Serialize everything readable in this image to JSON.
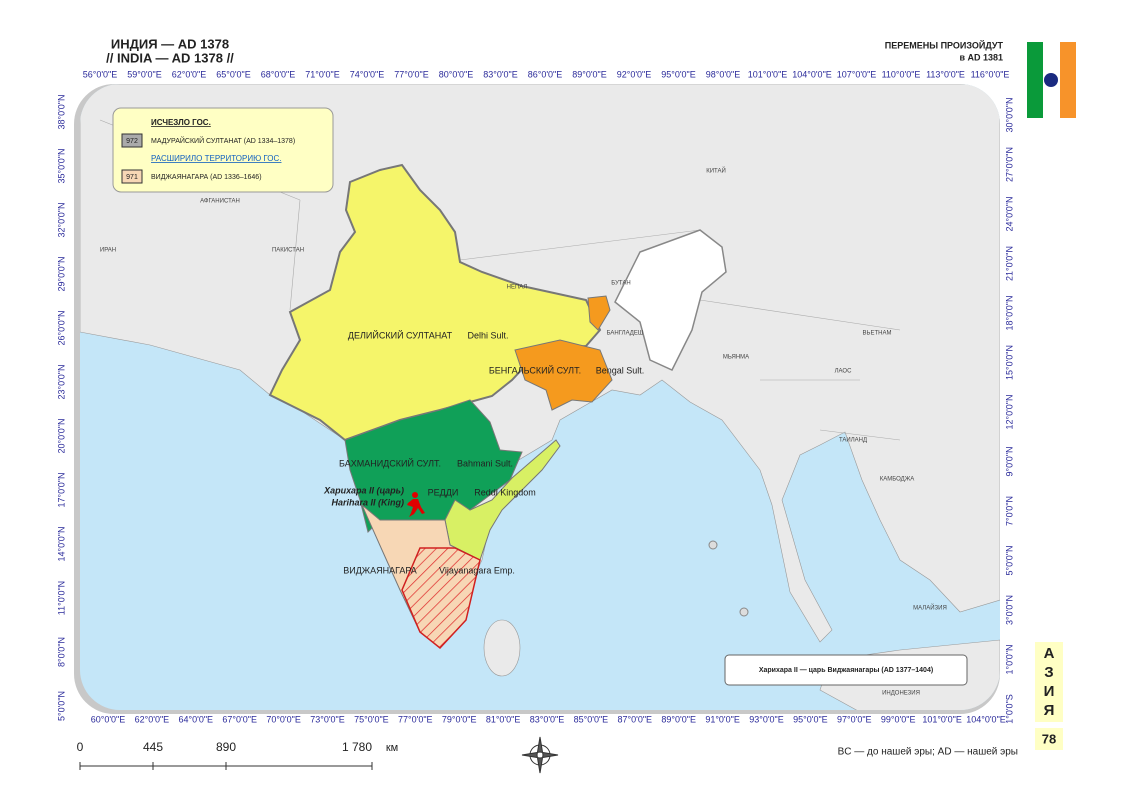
{
  "header": {
    "title_ru": "ИНДИЯ — AD 1378",
    "title_en": "// INDIA — AD 1378 //",
    "notice_line1": "ПЕРЕМЕНЫ ПРОИЗОЙДУТ",
    "notice_line2": "в AD 1381"
  },
  "grid_labels": {
    "top": [
      "56°0'0\"E",
      "59°0'0\"E",
      "62°0'0\"E",
      "65°0'0\"E",
      "68°0'0\"E",
      "71°0'0\"E",
      "74°0'0\"E",
      "77°0'0\"E",
      "80°0'0\"E",
      "83°0'0\"E",
      "86°0'0\"E",
      "89°0'0\"E",
      "92°0'0\"E",
      "95°0'0\"E",
      "98°0'0\"E",
      "101°0'0\"E",
      "104°0'0\"E",
      "107°0'0\"E",
      "110°0'0\"E",
      "113°0'0\"E",
      "116°0'0\"E"
    ],
    "bottom": [
      "60°0'0\"E",
      "62°0'0\"E",
      "64°0'0\"E",
      "67°0'0\"E",
      "70°0'0\"E",
      "73°0'0\"E",
      "75°0'0\"E",
      "77°0'0\"E",
      "79°0'0\"E",
      "81°0'0\"E",
      "83°0'0\"E",
      "85°0'0\"E",
      "87°0'0\"E",
      "89°0'0\"E",
      "91°0'0\"E",
      "93°0'0\"E",
      "95°0'0\"E",
      "97°0'0\"E",
      "99°0'0\"E",
      "101°0'0\"E",
      "104°0'0\"E"
    ],
    "left": [
      "38°0'0\"N",
      "35°0'0\"N",
      "32°0'0\"N",
      "29°0'0\"N",
      "26°0'0\"N",
      "23°0'0\"N",
      "20°0'0\"N",
      "17°0'0\"N",
      "14°0'0\"N",
      "11°0'0\"N",
      "8°0'0\"N",
      "5°0'0\"N"
    ],
    "right": [
      "30°0'0\"N",
      "27°0'0\"N",
      "24°0'0\"N",
      "21°0'0\"N",
      "18°0'0\"N",
      "15°0'0\"N",
      "12°0'0\"N",
      "9°0'0\"N",
      "7°0'0\"N",
      "5°0'0\"N",
      "3°0'0\"N",
      "1°0'0\"N",
      "1°0'0\"S"
    ]
  },
  "legend": {
    "heading_disappeared": "ИСЧЕЗЛО ГОС.",
    "item_disappeared": {
      "code": "972",
      "label": "МАДУРАЙСКИЙ СУЛТАНАТ (AD 1334–1378)"
    },
    "heading_expanded": "РАСШИРИЛО ТЕРРИТОРИЮ ГОС.",
    "item_expanded": {
      "code": "971",
      "label": "ВИДЖАЯНАГАРА (AD 1336–1646)"
    }
  },
  "countries": [
    "АФГАНИСТАН",
    "ИРАН",
    "ПАКИСТАН",
    "КИТАЙ",
    "НЕПАЛ",
    "БУТАН",
    "БАНГЛАДЕШ",
    "ВЬЕТНАМ",
    "МЬЯНМА",
    "ЛАОС",
    "ТАИЛАНД",
    "КАМБОДЖА",
    "МАЛАЙЗИЯ",
    "ИНДОНЕЗИЯ"
  ],
  "states": [
    {
      "name_ru": "ДЕЛИЙСКИЙ СУЛТАНАТ",
      "name_en": "Delhi Sult."
    },
    {
      "name_ru": "БЕНГАЛЬСКИЙ СУЛТ.",
      "name_en": "Bengal Sult."
    },
    {
      "name_ru": "БАХМАНИДСКИЙ СУЛТ.",
      "name_en": "Bahmani Sult."
    },
    {
      "name_ru": "РЕДДИ",
      "name_en": "Reddi Kingdom"
    },
    {
      "name_ru": "ВИДЖАЯНАГАРА",
      "name_en": "Vijayanagara Emp."
    }
  ],
  "ruler": {
    "line1": "Харихара II (царь)",
    "line2": "Harihara II (King)"
  },
  "info_box": "Харихара II — царь Виджаянагары (AD 1377–1404)",
  "side_tab": {
    "letters": [
      "А",
      "З",
      "И",
      "Я"
    ],
    "page": "78"
  },
  "scale": {
    "ticks": [
      "0",
      "445",
      "890",
      "1 780"
    ],
    "unit": "км"
  },
  "footer_note": "BC — до нашей эры; AD — нашей эры"
}
